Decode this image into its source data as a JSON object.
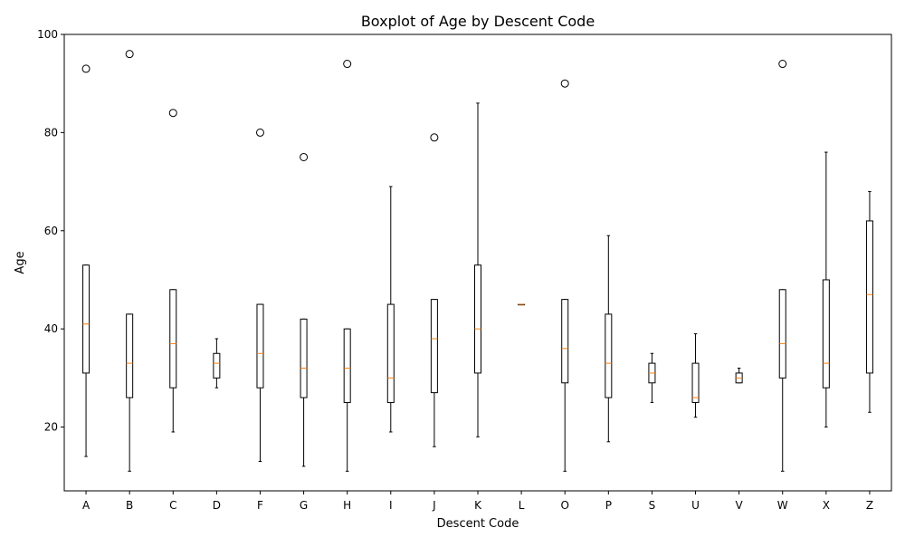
{
  "chart_data": {
    "type": "box",
    "title": "Boxplot of Age by Descent Code",
    "xlabel": "Descent Code",
    "ylabel": "Age",
    "ylim": [
      7,
      100
    ],
    "yticks": [
      20,
      40,
      60,
      80,
      100
    ],
    "grid": false,
    "colors": {
      "box": "#000000",
      "median": "#ff7f0e",
      "outlier": "#000000"
    },
    "categories": [
      "A",
      "B",
      "C",
      "D",
      "F",
      "G",
      "H",
      "I",
      "J",
      "K",
      "L",
      "O",
      "P",
      "S",
      "U",
      "V",
      "W",
      "X",
      "Z"
    ],
    "boxes": [
      {
        "label": "A",
        "whisker_low": 14,
        "q1": 31,
        "median": 41,
        "q3": 53,
        "whisker_high": 53,
        "outliers": [
          93
        ]
      },
      {
        "label": "B",
        "whisker_low": 11,
        "q1": 26,
        "median": 33,
        "q3": 43,
        "whisker_high": 43,
        "outliers": [
          96
        ]
      },
      {
        "label": "C",
        "whisker_low": 19,
        "q1": 28,
        "median": 37,
        "q3": 48,
        "whisker_high": 48,
        "outliers": [
          84
        ]
      },
      {
        "label": "D",
        "whisker_low": 28,
        "q1": 30,
        "median": 33,
        "q3": 35,
        "whisker_high": 38,
        "outliers": []
      },
      {
        "label": "F",
        "whisker_low": 13,
        "q1": 28,
        "median": 35,
        "q3": 45,
        "whisker_high": 45,
        "outliers": [
          80
        ]
      },
      {
        "label": "G",
        "whisker_low": 12,
        "q1": 26,
        "median": 32,
        "q3": 42,
        "whisker_high": 42,
        "outliers": [
          75
        ]
      },
      {
        "label": "H",
        "whisker_low": 11,
        "q1": 25,
        "median": 32,
        "q3": 40,
        "whisker_high": 40,
        "outliers": [
          94
        ]
      },
      {
        "label": "I",
        "whisker_low": 19,
        "q1": 25,
        "median": 30,
        "q3": 45,
        "whisker_high": 69,
        "outliers": []
      },
      {
        "label": "J",
        "whisker_low": 16,
        "q1": 27,
        "median": 38,
        "q3": 46,
        "whisker_high": 46,
        "outliers": [
          79
        ]
      },
      {
        "label": "K",
        "whisker_low": 18,
        "q1": 31,
        "median": 40,
        "q3": 53,
        "whisker_high": 86,
        "outliers": []
      },
      {
        "label": "L",
        "whisker_low": 45,
        "q1": 45,
        "median": 45,
        "q3": 45,
        "whisker_high": 45,
        "outliers": []
      },
      {
        "label": "O",
        "whisker_low": 11,
        "q1": 29,
        "median": 36,
        "q3": 46,
        "whisker_high": 46,
        "outliers": [
          90
        ]
      },
      {
        "label": "P",
        "whisker_low": 17,
        "q1": 26,
        "median": 33,
        "q3": 43,
        "whisker_high": 59,
        "outliers": []
      },
      {
        "label": "S",
        "whisker_low": 25,
        "q1": 29,
        "median": 31,
        "q3": 33,
        "whisker_high": 35,
        "outliers": []
      },
      {
        "label": "U",
        "whisker_low": 22,
        "q1": 25,
        "median": 26,
        "q3": 33,
        "whisker_high": 39,
        "outliers": []
      },
      {
        "label": "V",
        "whisker_low": 29,
        "q1": 29,
        "median": 30,
        "q3": 31,
        "whisker_high": 32,
        "outliers": []
      },
      {
        "label": "W",
        "whisker_low": 11,
        "q1": 30,
        "median": 37,
        "q3": 48,
        "whisker_high": 48,
        "outliers": [
          94
        ]
      },
      {
        "label": "X",
        "whisker_low": 20,
        "q1": 28,
        "median": 33,
        "q3": 50,
        "whisker_high": 76,
        "outliers": []
      },
      {
        "label": "Z",
        "whisker_low": 23,
        "q1": 31,
        "median": 47,
        "q3": 62,
        "whisker_high": 68,
        "outliers": []
      }
    ]
  }
}
